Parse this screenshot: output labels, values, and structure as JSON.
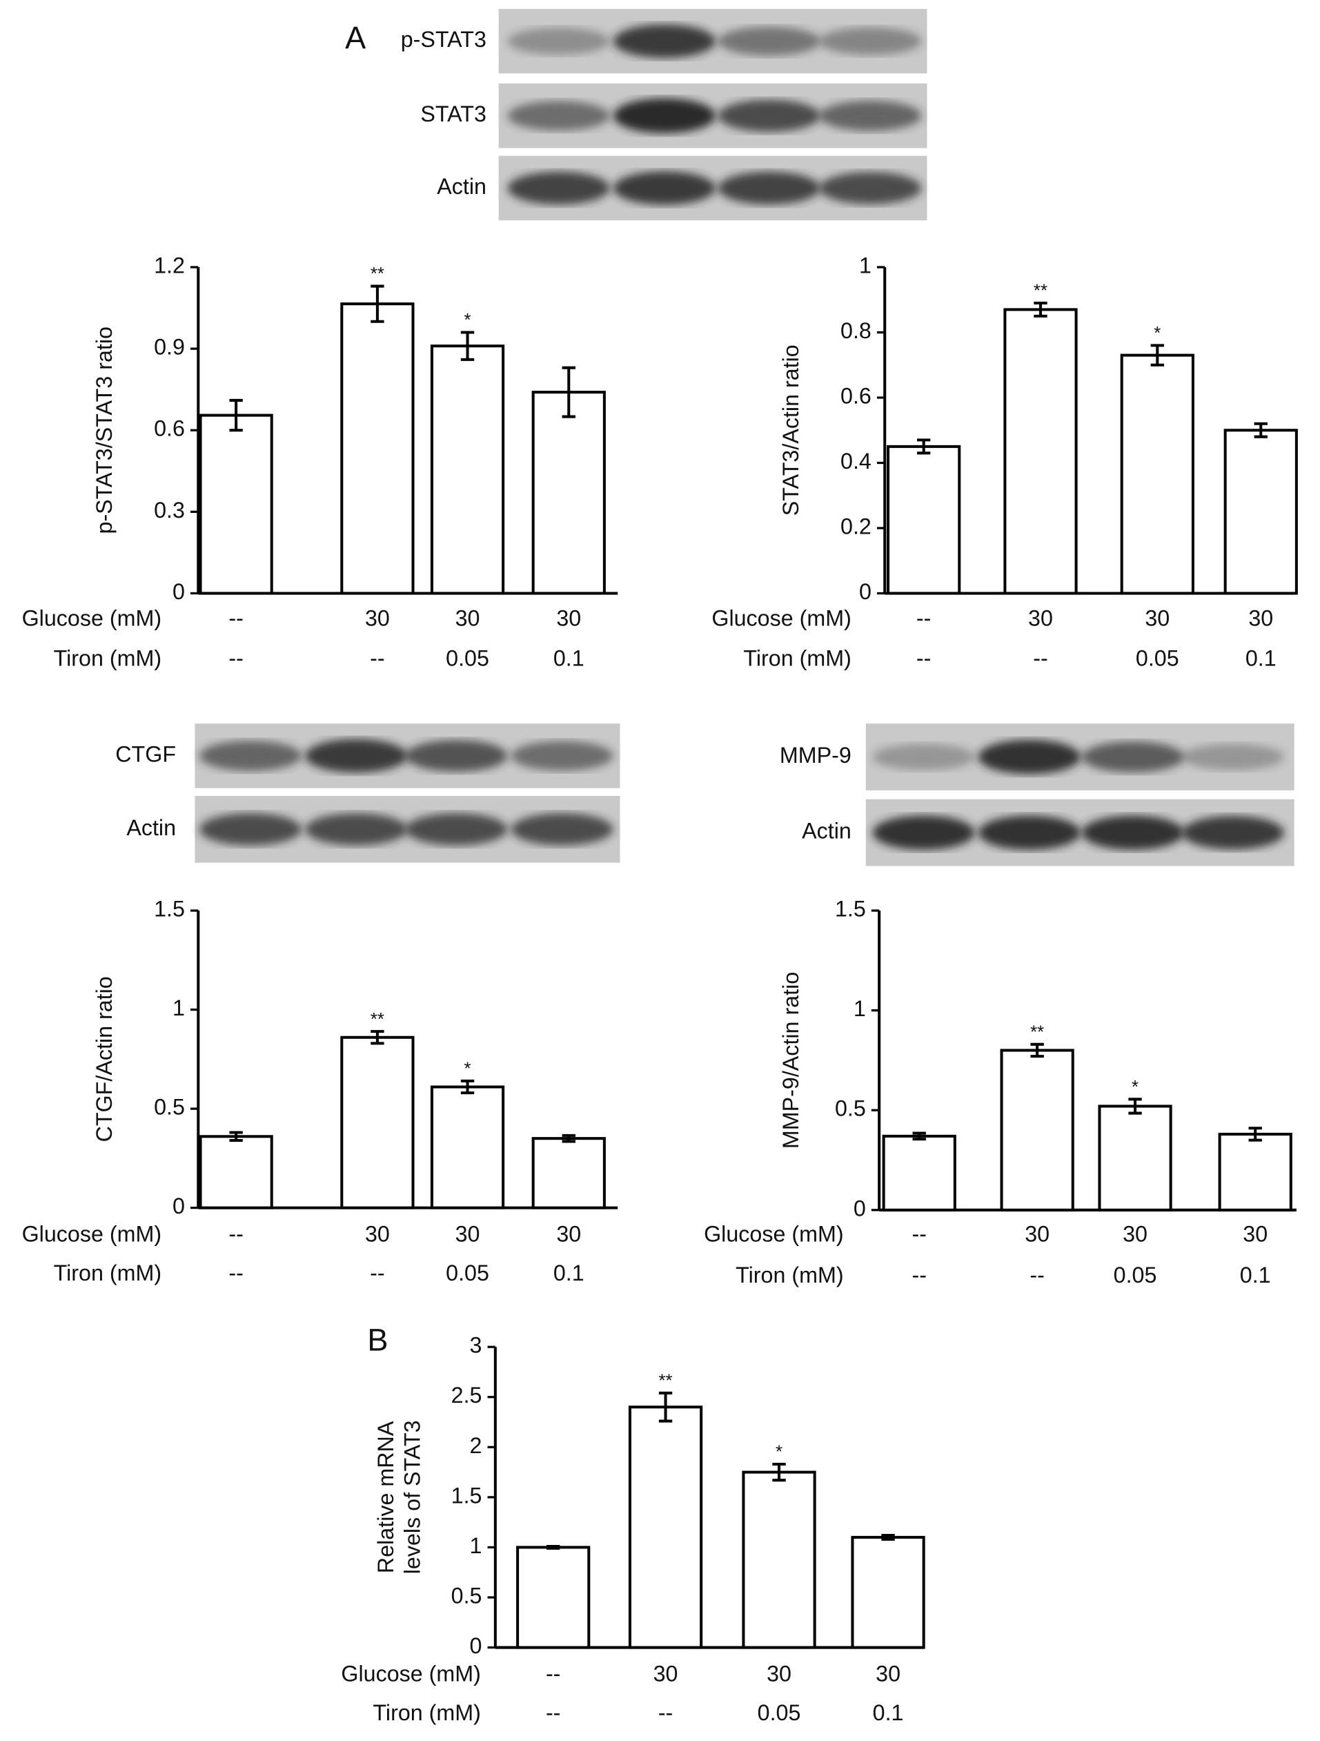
{
  "panel_labels": [
    "A",
    "B"
  ],
  "blots": [
    {
      "labels": [
        "p-STAT3",
        "STAT3",
        "Actin"
      ]
    },
    {
      "labels": [
        "CTGF",
        "Actin"
      ]
    },
    {
      "labels": [
        "MMP-9",
        "Actin"
      ]
    }
  ],
  "chart_data": [
    {
      "type": "bar",
      "ylabel": "p-STAT3/STAT3 ratio",
      "ylim": [
        0,
        1.2
      ],
      "yticks": [
        0,
        0.3,
        0.6,
        0.9,
        1.2
      ],
      "conditions": [
        {
          "name": "Glucose (mM)",
          "labels": [
            "--",
            "30",
            "30",
            "30"
          ]
        },
        {
          "name": "Tiron (mM)",
          "labels": [
            "--",
            "--",
            "0.05",
            "0.1"
          ]
        }
      ],
      "values": [
        0.655,
        1.065,
        0.91,
        0.74
      ],
      "errors": [
        0.055,
        0.065,
        0.05,
        0.09
      ],
      "significance": [
        null,
        "**",
        "*",
        null
      ],
      "color": "#ffffff"
    },
    {
      "type": "bar",
      "ylabel": "STAT3/Actin ratio",
      "ylim": [
        0,
        1
      ],
      "yticks": [
        0,
        0.2,
        0.4,
        0.6,
        0.8,
        1
      ],
      "conditions": [
        {
          "name": "Glucose (mM)",
          "labels": [
            "--",
            "30",
            "30",
            "30"
          ]
        },
        {
          "name": "Tiron (mM)",
          "labels": [
            "--",
            "--",
            "0.05",
            "0.1"
          ]
        }
      ],
      "values": [
        0.45,
        0.87,
        0.73,
        0.5
      ],
      "errors": [
        0.02,
        0.02,
        0.03,
        0.02
      ],
      "significance": [
        null,
        "**",
        "*",
        null
      ],
      "color": "#ffffff"
    },
    {
      "type": "bar",
      "ylabel": "CTGF/Actin ratio",
      "ylim": [
        0,
        1.5
      ],
      "yticks": [
        0,
        0.5,
        1,
        1.5
      ],
      "conditions": [
        {
          "name": "Glucose (mM)",
          "labels": [
            "--",
            "30",
            "30",
            "30"
          ]
        },
        {
          "name": "Tiron (mM)",
          "labels": [
            "--",
            "--",
            "0.05",
            "0.1"
          ]
        }
      ],
      "values": [
        0.36,
        0.86,
        0.61,
        0.35
      ],
      "errors": [
        0.02,
        0.03,
        0.03,
        0.015
      ],
      "significance": [
        null,
        "**",
        "*",
        null
      ],
      "color": "#ffffff"
    },
    {
      "type": "bar",
      "ylabel": "MMP-9/Actin ratio",
      "ylim": [
        0,
        1.5
      ],
      "yticks": [
        0,
        0.5,
        1,
        1.5
      ],
      "conditions": [
        {
          "name": "Glucose (mM)",
          "labels": [
            "--",
            "30",
            "30",
            "30"
          ]
        },
        {
          "name": "Tiron (mM)",
          "labels": [
            "--",
            "--",
            "0.05",
            "0.1"
          ]
        }
      ],
      "values": [
        0.37,
        0.8,
        0.52,
        0.38
      ],
      "errors": [
        0.015,
        0.03,
        0.035,
        0.03
      ],
      "significance": [
        null,
        "**",
        "*",
        null
      ],
      "color": "#ffffff"
    },
    {
      "type": "bar",
      "ylabel_lines": [
        "Relative mRNA",
        "levels of STAT3"
      ],
      "ylim": [
        0,
        3
      ],
      "yticks": [
        0,
        0.5,
        1,
        1.5,
        2,
        2.5,
        3
      ],
      "conditions": [
        {
          "name": "Glucose (mM)",
          "labels": [
            "--",
            "30",
            "30",
            "30"
          ]
        },
        {
          "name": "Tiron (mM)",
          "labels": [
            "--",
            "--",
            "0.05",
            "0.1"
          ]
        }
      ],
      "values": [
        1.0,
        2.4,
        1.75,
        1.1
      ],
      "errors": [
        0.01,
        0.14,
        0.08,
        0.02
      ],
      "significance": [
        null,
        "**",
        "*",
        null
      ],
      "color": "#ffffff"
    }
  ]
}
